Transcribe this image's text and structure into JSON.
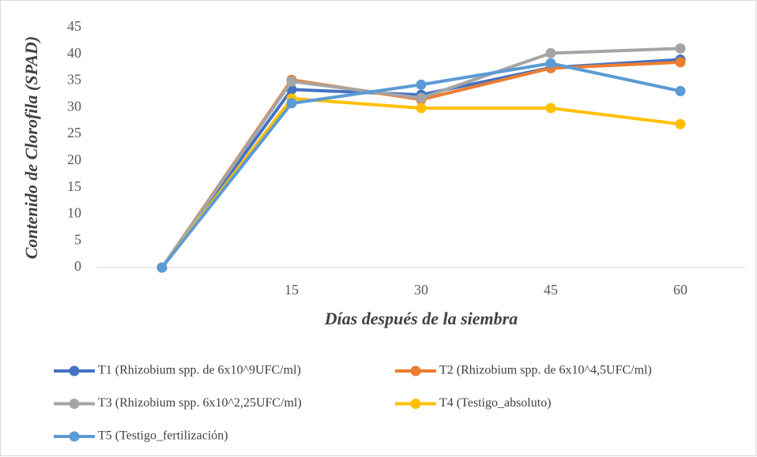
{
  "chart_data": {
    "type": "line",
    "x_label": "Días después de la siembra",
    "y_label": "Contenido de Clorofila (SPAD)",
    "categories": [
      null,
      15,
      30,
      45,
      60
    ],
    "series": [
      {
        "name": "T1 (Rhizobium spp. de 6x10^9UFC/ml)",
        "color": "#4472c4",
        "values": [
          0,
          33.4,
          32.4,
          37.5,
          39.0
        ]
      },
      {
        "name": "T2 (Rhizobium spp. de 6x10^4,5UFC/ml)",
        "color": "#ed7d31",
        "values": [
          0,
          35.2,
          31.5,
          37.4,
          38.5
        ]
      },
      {
        "name": "T3 (Rhizobium spp. 6x10^2,25UFC/ml)",
        "color": "#a5a5a5",
        "values": [
          0,
          34.9,
          31.8,
          40.2,
          41.1
        ]
      },
      {
        "name": "T4 (Testigo_absoluto)",
        "color": "#ffc000",
        "values": [
          0,
          31.7,
          29.9,
          29.9,
          26.9
        ]
      },
      {
        "name": "T5 (Testigo_fertilización)",
        "color": "#5b9bd5",
        "values": [
          0,
          30.8,
          34.3,
          38.3,
          33.1
        ]
      }
    ],
    "ylim": [
      0,
      45
    ],
    "yticks": [
      0,
      5,
      10,
      15,
      20,
      25,
      30,
      35,
      40,
      45
    ],
    "grid": false,
    "legend": "bottom"
  }
}
